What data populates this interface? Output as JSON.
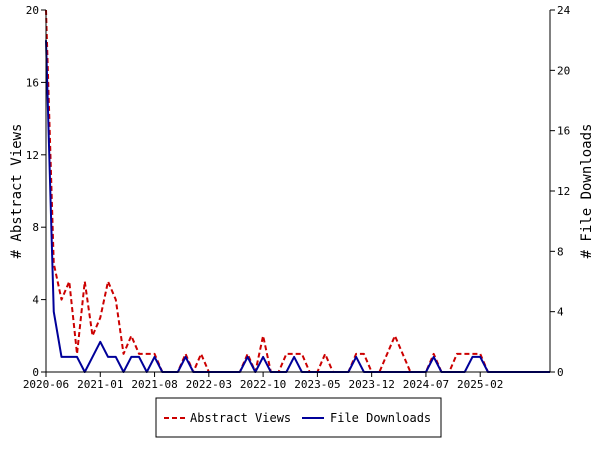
{
  "chart_data": {
    "type": "line",
    "ylabel_left": "# Abstract Views",
    "ylabel_right": "# File Downloads",
    "xlabel": "",
    "x_start": "2020-06",
    "x_end": "2025-10",
    "x_tick_labels": [
      "2020-06",
      "2021-01",
      "2021-08",
      "2022-03",
      "2022-10",
      "2023-05",
      "2023-12",
      "2024-07",
      "2025-02"
    ],
    "ylim_left": [
      0,
      20
    ],
    "yticks_left": [
      "0",
      "4",
      "8",
      "12",
      "16",
      "20"
    ],
    "ylim_right": [
      0,
      24
    ],
    "yticks_right": [
      "0",
      "4",
      "8",
      "12",
      "16",
      "20",
      "24"
    ],
    "grid": false,
    "legend_position": "bottom-center",
    "series": [
      {
        "name": "Abstract Views",
        "axis": "left",
        "color": "#cc0000",
        "dash": "dashed",
        "values": [
          20,
          6,
          4,
          5,
          1,
          5,
          2,
          3,
          5,
          4,
          1,
          2,
          1,
          1,
          1,
          0,
          0,
          0,
          1,
          0,
          1,
          0,
          0,
          0,
          0,
          0,
          1,
          0,
          2,
          0,
          0,
          1,
          1,
          1,
          0,
          0,
          1,
          0,
          0,
          0,
          1,
          1,
          0,
          0,
          1,
          2,
          1,
          0,
          0,
          0,
          1,
          0,
          0,
          1,
          1,
          1,
          1,
          0,
          0,
          0,
          0,
          0,
          0,
          0,
          0,
          0
        ]
      },
      {
        "name": "File Downloads",
        "axis": "right",
        "color": "#000099",
        "dash": "solid",
        "values": [
          22,
          4,
          1,
          1,
          1,
          0,
          1,
          2,
          1,
          1,
          0,
          1,
          1,
          0,
          1,
          0,
          0,
          0,
          1,
          0,
          0,
          0,
          0,
          0,
          0,
          0,
          1,
          0,
          1,
          0,
          0,
          0,
          1,
          0,
          0,
          0,
          0,
          0,
          0,
          0,
          1,
          0,
          0,
          0,
          0,
          0,
          0,
          0,
          0,
          0,
          1,
          0,
          0,
          0,
          0,
          1,
          1,
          0,
          0,
          0,
          0,
          0,
          0,
          0,
          0,
          0
        ]
      }
    ]
  }
}
